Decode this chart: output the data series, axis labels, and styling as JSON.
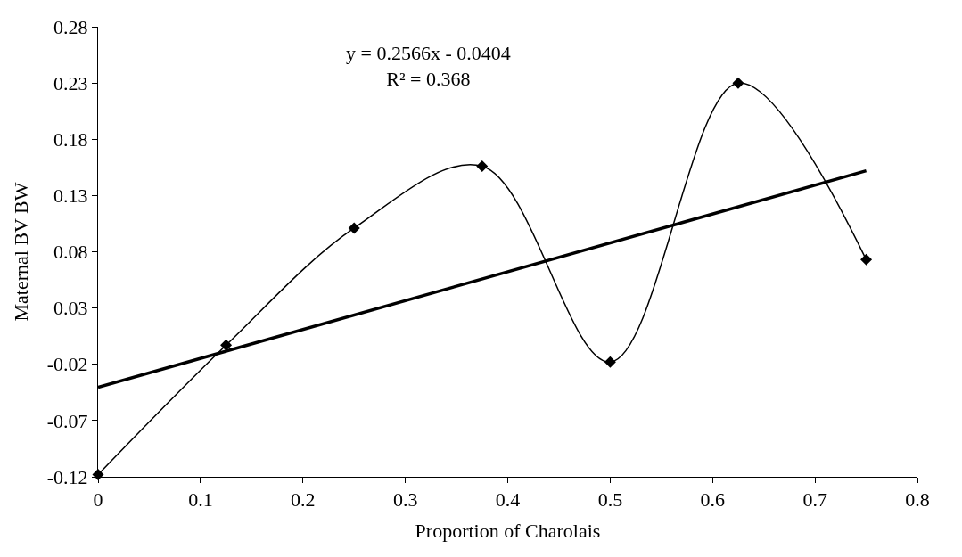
{
  "chart_data": {
    "type": "line",
    "xlabel": "Proportion of Charolais",
    "ylabel": "Maternal BV BW",
    "series": [
      {
        "color": "#000000",
        "marker": "diamond",
        "x": [
          0,
          0.125,
          0.25,
          0.375,
          0.5,
          0.625,
          0.75
        ],
        "values": [
          -0.118,
          -0.003,
          0.101,
          0.156,
          -0.018,
          0.23,
          0.073
        ]
      },
      {
        "color": "#000000",
        "marker": "none",
        "x": [
          0,
          0.75
        ],
        "values": [
          -0.0404,
          0.152
        ]
      }
    ],
    "annotations": [
      {
        "text": "y = 0.2566x - 0.0404\nR² = 0.368"
      }
    ],
    "xlim": [
      0,
      0.8
    ],
    "xticks": [
      0,
      0.1,
      0.2,
      0.3,
      0.4,
      0.5,
      0.6,
      0.7,
      0.8
    ],
    "ylim": [
      -0.12,
      0.28
    ],
    "yticks": [
      -0.12,
      -0.07,
      -0.02,
      0.03,
      0.08,
      0.13,
      0.18,
      0.23,
      0.28
    ]
  }
}
